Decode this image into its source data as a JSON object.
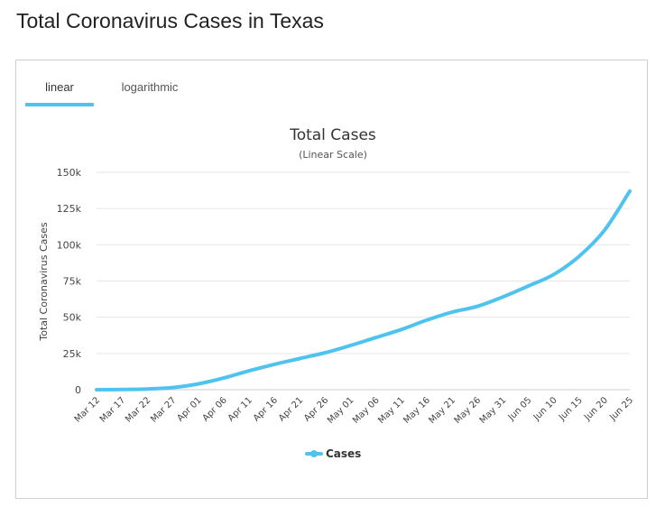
{
  "page": {
    "title": "Total Coronavirus Cases in Texas"
  },
  "tabs": [
    {
      "label": "linear",
      "active": true
    },
    {
      "label": "logarithmic",
      "active": false
    }
  ],
  "colors": {
    "series": "#4fc3f0",
    "tab_underline": "#4fc3f0",
    "grid": "#e6e6e6",
    "text": "#333333"
  },
  "chart_data": {
    "type": "line",
    "title": "Total Cases",
    "subtitle": "(Linear Scale)",
    "xlabel": "",
    "ylabel": "Total Coronavirus Cases",
    "ylim": [
      0,
      150000
    ],
    "yticks": [
      0,
      25000,
      50000,
      75000,
      100000,
      125000,
      150000
    ],
    "ytick_labels": [
      "0",
      "25k",
      "50k",
      "75k",
      "100k",
      "125k",
      "150k"
    ],
    "xtick_labels": [
      "Mar 12",
      "Mar 17",
      "Mar 22",
      "Mar 27",
      "Apr 01",
      "Apr 06",
      "Apr 11",
      "Apr 16",
      "Apr 21",
      "Apr 26",
      "May 01",
      "May 06",
      "May 11",
      "May 16",
      "May 21",
      "May 26",
      "May 31",
      "Jun 05",
      "Jun 10",
      "Jun 15",
      "Jun 20",
      "Jun 25"
    ],
    "grid": true,
    "legend_position": "bottom-center",
    "series": [
      {
        "name": "Cases",
        "color": "#4fc3f0",
        "x": [
          "Mar 12",
          "Mar 17",
          "Mar 22",
          "Mar 27",
          "Apr 01",
          "Apr 06",
          "Apr 11",
          "Apr 16",
          "Apr 21",
          "Apr 26",
          "May 01",
          "May 06",
          "May 11",
          "May 16",
          "May 21",
          "May 26",
          "May 31",
          "Jun 05",
          "Jun 10",
          "Jun 15",
          "Jun 20",
          "Jun 25"
        ],
        "values": [
          0,
          150,
          500,
          1500,
          4000,
          8000,
          13000,
          17500,
          21500,
          25500,
          30500,
          36000,
          41500,
          48000,
          53500,
          57500,
          64000,
          71500,
          79500,
          92000,
          110000,
          137000
        ]
      }
    ]
  }
}
